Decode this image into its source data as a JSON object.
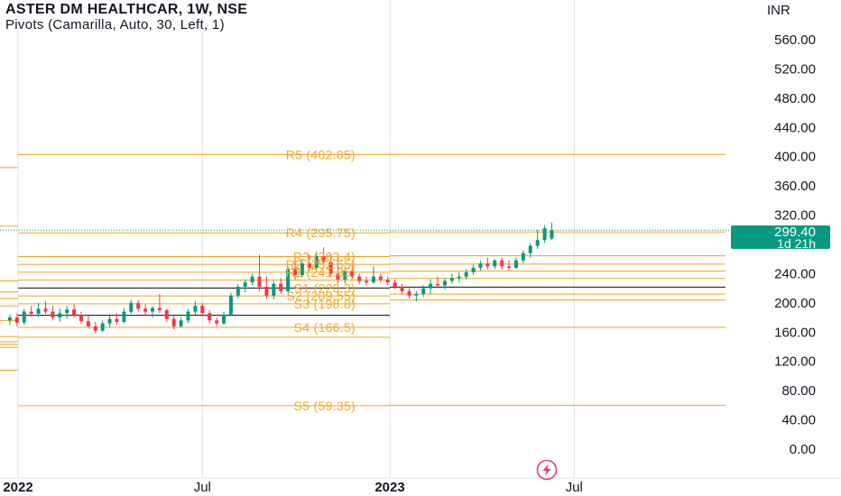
{
  "header": {
    "title": "ASTER DM HEALTHCAR, 1W, NSE",
    "study": "Pivots (Camarilla, Auto, 30, Left, 1)"
  },
  "currency": "INR",
  "price_badge": {
    "value": "299.40",
    "countdown": "1d 21h",
    "color": "#089981"
  },
  "colors": {
    "pivot": "#f7a21b",
    "pivot_text": "#f5a623",
    "up": "#089981",
    "down": "#f23645",
    "axis_text": "#131722",
    "grid": "#e0e3eb",
    "black_line": "#131722",
    "flash": "#e5405f"
  },
  "chart_data": {
    "type": "candlestick",
    "ylim": [
      -20,
      575
    ],
    "y_ticks": [
      0,
      40,
      80,
      120,
      160,
      200,
      240,
      280,
      320,
      360,
      400,
      440,
      480,
      520,
      560
    ],
    "y_tick_labels": [
      "0.00",
      "40.00",
      "80.00",
      "120.00",
      "160.00",
      "200.00",
      "240.00",
      "280.00",
      "320.00",
      "360.00",
      "400.00",
      "440.00",
      "480.00",
      "520.00",
      "560.00"
    ],
    "x_labels": [
      {
        "label": "2022",
        "date": "2022-01-01"
      },
      {
        "label": "Jul",
        "date": "2022-07-01"
      },
      {
        "label": "2023",
        "date": "2023-01-01"
      },
      {
        "label": "Jul",
        "date": "2023-07-01"
      }
    ],
    "last_price": 299.4,
    "pivot_labels": [
      {
        "text": "R5 (402.85)",
        "value": 402.85
      },
      {
        "text": "R4 (295.75)",
        "value": 295.75
      },
      {
        "text": "R3 (263.4)",
        "value": 263.4
      },
      {
        "text": "R2 (252.65)",
        "value": 252.65
      },
      {
        "text": "R1 (241.85)",
        "value": 241.85
      },
      {
        "text": "S1 (220.3)",
        "value": 220.3
      },
      {
        "text": "S2 (209.55)",
        "value": 209.55
      },
      {
        "text": "S3 (198.8)",
        "value": 198.8
      },
      {
        "text": "S4 (166.5)",
        "value": 166.5
      },
      {
        "text": "S5 (59.35)",
        "value": 59.35
      }
    ],
    "pivot_periods": [
      {
        "start": "2021-01-01",
        "end": "2022-01-01",
        "levels": [
          385,
          305,
          230,
          215,
          206,
          196,
          176,
          154,
          147,
          143,
          139,
          108
        ]
      },
      {
        "start": "2022-01-01",
        "end": "2023-01-01",
        "levels": [
          402.85,
          295.75,
          263.4,
          252.65,
          241.85,
          231.1,
          220.3,
          209.55,
          198.8,
          183,
          166.5,
          153,
          59.35
        ],
        "black": [
          220.3,
          183
        ]
      },
      {
        "start": "2023-01-01",
        "end": "2023-12-31",
        "levels": [
          403,
          297,
          264.5,
          253,
          243.5,
          233.5,
          221.5,
          212,
          204,
          166.5,
          60
        ],
        "black": [
          221.5
        ]
      }
    ],
    "series": [
      {
        "name": "ASTER DM HEALTHCAR",
        "candles": [
          {
            "date": "2021-12-24",
            "open": 176,
            "high": 184,
            "low": 170,
            "close": 180
          },
          {
            "date": "2021-12-31",
            "open": 180,
            "high": 186,
            "low": 168,
            "close": 173
          },
          {
            "date": "2022-01-07",
            "open": 173,
            "high": 192,
            "low": 170,
            "close": 188
          },
          {
            "date": "2022-01-14",
            "open": 188,
            "high": 196,
            "low": 181,
            "close": 185
          },
          {
            "date": "2022-01-21",
            "open": 185,
            "high": 200,
            "low": 180,
            "close": 192
          },
          {
            "date": "2022-01-28",
            "open": 192,
            "high": 202,
            "low": 185,
            "close": 188
          },
          {
            "date": "2022-02-04",
            "open": 188,
            "high": 196,
            "low": 176,
            "close": 180
          },
          {
            "date": "2022-02-11",
            "open": 180,
            "high": 192,
            "low": 174,
            "close": 186
          },
          {
            "date": "2022-02-18",
            "open": 186,
            "high": 196,
            "low": 178,
            "close": 191
          },
          {
            "date": "2022-02-25",
            "open": 191,
            "high": 198,
            "low": 180,
            "close": 183
          },
          {
            "date": "2022-03-04",
            "open": 183,
            "high": 188,
            "low": 171,
            "close": 175
          },
          {
            "date": "2022-03-11",
            "open": 175,
            "high": 182,
            "low": 165,
            "close": 168
          },
          {
            "date": "2022-03-18",
            "open": 168,
            "high": 174,
            "low": 158,
            "close": 162
          },
          {
            "date": "2022-03-25",
            "open": 162,
            "high": 176,
            "low": 160,
            "close": 172
          },
          {
            "date": "2022-04-01",
            "open": 172,
            "high": 182,
            "low": 166,
            "close": 178
          },
          {
            "date": "2022-04-08",
            "open": 178,
            "high": 186,
            "low": 170,
            "close": 174
          },
          {
            "date": "2022-04-15",
            "open": 174,
            "high": 193,
            "low": 172,
            "close": 188
          },
          {
            "date": "2022-04-22",
            "open": 188,
            "high": 204,
            "low": 185,
            "close": 200
          },
          {
            "date": "2022-04-29",
            "open": 200,
            "high": 204,
            "low": 188,
            "close": 192
          },
          {
            "date": "2022-05-06",
            "open": 192,
            "high": 198,
            "low": 183,
            "close": 188
          },
          {
            "date": "2022-05-13",
            "open": 188,
            "high": 196,
            "low": 180,
            "close": 193
          },
          {
            "date": "2022-05-20",
            "open": 193,
            "high": 212,
            "low": 186,
            "close": 190
          },
          {
            "date": "2022-05-27",
            "open": 190,
            "high": 192,
            "low": 174,
            "close": 178
          },
          {
            "date": "2022-06-03",
            "open": 178,
            "high": 182,
            "low": 164,
            "close": 168
          },
          {
            "date": "2022-06-10",
            "open": 168,
            "high": 180,
            "low": 166,
            "close": 176
          },
          {
            "date": "2022-06-17",
            "open": 176,
            "high": 192,
            "low": 172,
            "close": 188
          },
          {
            "date": "2022-06-24",
            "open": 188,
            "high": 202,
            "low": 184,
            "close": 196
          },
          {
            "date": "2022-07-01",
            "open": 196,
            "high": 200,
            "low": 182,
            "close": 186
          },
          {
            "date": "2022-07-08",
            "open": 186,
            "high": 190,
            "low": 172,
            "close": 176
          },
          {
            "date": "2022-07-15",
            "open": 176,
            "high": 180,
            "low": 168,
            "close": 172
          },
          {
            "date": "2022-07-22",
            "open": 172,
            "high": 188,
            "low": 170,
            "close": 184
          },
          {
            "date": "2022-07-29",
            "open": 184,
            "high": 214,
            "low": 182,
            "close": 210
          },
          {
            "date": "2022-08-05",
            "open": 210,
            "high": 226,
            "low": 206,
            "close": 222
          },
          {
            "date": "2022-08-12",
            "open": 222,
            "high": 232,
            "low": 214,
            "close": 228
          },
          {
            "date": "2022-08-19",
            "open": 228,
            "high": 240,
            "low": 224,
            "close": 236
          },
          {
            "date": "2022-08-26",
            "open": 236,
            "high": 266,
            "low": 216,
            "close": 222
          },
          {
            "date": "2022-09-02",
            "open": 222,
            "high": 236,
            "low": 206,
            "close": 210
          },
          {
            "date": "2022-09-09",
            "open": 210,
            "high": 230,
            "low": 205,
            "close": 226
          },
          {
            "date": "2022-09-16",
            "open": 226,
            "high": 234,
            "low": 212,
            "close": 216
          },
          {
            "date": "2022-09-23",
            "open": 216,
            "high": 250,
            "low": 214,
            "close": 246
          },
          {
            "date": "2022-09-30",
            "open": 246,
            "high": 262,
            "low": 232,
            "close": 238
          },
          {
            "date": "2022-10-07",
            "open": 238,
            "high": 260,
            "low": 234,
            "close": 254
          },
          {
            "date": "2022-10-14",
            "open": 254,
            "high": 266,
            "low": 244,
            "close": 248
          },
          {
            "date": "2022-10-21",
            "open": 248,
            "high": 270,
            "low": 242,
            "close": 264
          },
          {
            "date": "2022-10-28",
            "open": 264,
            "high": 276,
            "low": 252,
            "close": 256
          },
          {
            "date": "2022-11-04",
            "open": 256,
            "high": 268,
            "low": 236,
            "close": 240
          },
          {
            "date": "2022-11-11",
            "open": 240,
            "high": 262,
            "low": 226,
            "close": 232
          },
          {
            "date": "2022-11-18",
            "open": 232,
            "high": 250,
            "low": 226,
            "close": 244
          },
          {
            "date": "2022-11-25",
            "open": 244,
            "high": 252,
            "low": 232,
            "close": 236
          },
          {
            "date": "2022-12-02",
            "open": 236,
            "high": 240,
            "low": 226,
            "close": 230
          },
          {
            "date": "2022-12-09",
            "open": 230,
            "high": 236,
            "low": 224,
            "close": 228
          },
          {
            "date": "2022-12-16",
            "open": 228,
            "high": 250,
            "low": 226,
            "close": 236
          },
          {
            "date": "2022-12-23",
            "open": 236,
            "high": 240,
            "low": 228,
            "close": 232
          },
          {
            "date": "2022-12-30",
            "open": 232,
            "high": 236,
            "low": 224,
            "close": 228
          },
          {
            "date": "2023-01-06",
            "open": 228,
            "high": 232,
            "low": 218,
            "close": 222
          },
          {
            "date": "2023-01-13",
            "open": 222,
            "high": 226,
            "low": 212,
            "close": 216
          },
          {
            "date": "2023-01-20",
            "open": 216,
            "high": 220,
            "low": 206,
            "close": 210
          },
          {
            "date": "2023-01-27",
            "open": 210,
            "high": 216,
            "low": 202,
            "close": 212
          },
          {
            "date": "2023-02-03",
            "open": 212,
            "high": 224,
            "low": 208,
            "close": 220
          },
          {
            "date": "2023-02-10",
            "open": 220,
            "high": 232,
            "low": 212,
            "close": 226
          },
          {
            "date": "2023-02-17",
            "open": 226,
            "high": 236,
            "low": 220,
            "close": 224
          },
          {
            "date": "2023-02-24",
            "open": 224,
            "high": 234,
            "low": 218,
            "close": 230
          },
          {
            "date": "2023-03-03",
            "open": 230,
            "high": 240,
            "low": 226,
            "close": 234
          },
          {
            "date": "2023-03-10",
            "open": 234,
            "high": 242,
            "low": 228,
            "close": 236
          },
          {
            "date": "2023-03-17",
            "open": 236,
            "high": 246,
            "low": 232,
            "close": 242
          },
          {
            "date": "2023-03-24",
            "open": 242,
            "high": 252,
            "low": 238,
            "close": 248
          },
          {
            "date": "2023-03-31",
            "open": 248,
            "high": 258,
            "low": 244,
            "close": 254
          },
          {
            "date": "2023-04-07",
            "open": 254,
            "high": 262,
            "low": 246,
            "close": 250
          },
          {
            "date": "2023-04-14",
            "open": 250,
            "high": 260,
            "low": 246,
            "close": 258
          },
          {
            "date": "2023-04-21",
            "open": 258,
            "high": 262,
            "low": 246,
            "close": 250
          },
          {
            "date": "2023-04-28",
            "open": 250,
            "high": 258,
            "low": 244,
            "close": 248
          },
          {
            "date": "2023-05-05",
            "open": 248,
            "high": 262,
            "low": 246,
            "close": 258
          },
          {
            "date": "2023-05-12",
            "open": 258,
            "high": 272,
            "low": 254,
            "close": 268
          },
          {
            "date": "2023-05-19",
            "open": 268,
            "high": 282,
            "low": 262,
            "close": 278
          },
          {
            "date": "2023-05-26",
            "open": 278,
            "high": 300,
            "low": 274,
            "close": 286
          },
          {
            "date": "2023-06-02",
            "open": 286,
            "high": 306,
            "low": 282,
            "close": 302
          },
          {
            "date": "2023-06-09",
            "open": 288,
            "high": 310,
            "low": 286,
            "close": 299.4
          }
        ]
      }
    ]
  }
}
